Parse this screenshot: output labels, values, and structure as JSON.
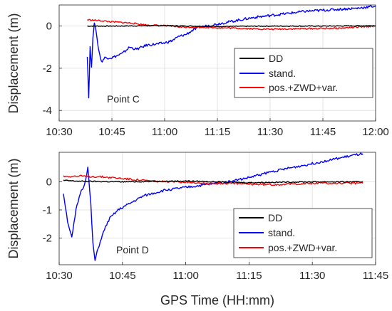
{
  "chart_data": [
    {
      "type": "line",
      "panel": "Point C",
      "annotation": "Point C",
      "ylabel": "Displacement (m)",
      "xlabel": "",
      "x_unit": "HH:mm",
      "xlim": [
        "10:30",
        "12:00"
      ],
      "ylim": [
        -4.5,
        1.0
      ],
      "x_ticks": [
        "10:30",
        "10:45",
        "11:00",
        "11:15",
        "11:30",
        "11:45",
        "12:00"
      ],
      "y_ticks": [
        -4,
        -2,
        0
      ],
      "grid": true,
      "legend": {
        "placement": "bottom-right",
        "entries": [
          "DD",
          "stand.",
          "pos.+ZWD+var."
        ]
      },
      "series": [
        {
          "name": "DD",
          "color": "#000000",
          "x": [
            "10:38",
            "10:45",
            "11:00",
            "11:15",
            "11:30",
            "11:45",
            "12:00"
          ],
          "y": [
            0.0,
            0.0,
            0.02,
            -0.02,
            0.0,
            0.0,
            0.02
          ]
        },
        {
          "name": "stand.",
          "color": "#0000ff",
          "x": [
            "10:38",
            "10:38.4",
            "10:38.8",
            "10:39.2",
            "10:39.6",
            "10:40",
            "10:40.5",
            "10:41",
            "10:42",
            "10:43",
            "10:45",
            "10:48",
            "10:50",
            "10:52",
            "10:55",
            "10:58",
            "11:00",
            "11:02",
            "11:04",
            "11:06",
            "11:08",
            "11:10",
            "11:15",
            "11:20",
            "11:25",
            "11:30",
            "11:35",
            "11:40",
            "11:45",
            "11:50",
            "11:55",
            "12:00"
          ],
          "y": [
            -1.4,
            -3.4,
            -1.0,
            -2.0,
            -0.5,
            0.1,
            -0.2,
            -0.9,
            -1.7,
            -1.5,
            -1.5,
            -1.3,
            -1.0,
            -1.1,
            -0.9,
            -0.85,
            -0.8,
            -0.7,
            -0.5,
            -0.4,
            -0.2,
            -0.05,
            0.1,
            0.25,
            0.4,
            0.5,
            0.6,
            0.7,
            0.75,
            0.8,
            0.85,
            0.95
          ]
        },
        {
          "name": "pos.+ZWD+var.",
          "color": "#ff0000",
          "x": [
            "10:38",
            "10:42",
            "10:45",
            "10:50",
            "10:55",
            "11:00",
            "11:05",
            "11:10",
            "11:15",
            "11:20",
            "11:30",
            "11:40",
            "11:50",
            "12:00"
          ],
          "y": [
            0.3,
            0.25,
            0.2,
            0.15,
            0.05,
            0.02,
            -0.05,
            -0.05,
            -0.08,
            -0.1,
            -0.15,
            -0.12,
            -0.1,
            0.0
          ]
        }
      ]
    },
    {
      "type": "line",
      "panel": "Point D",
      "annotation": "Point D",
      "ylabel": "Displacement (m)",
      "xlabel": "GPS Time (HH:mm)",
      "x_unit": "HH:mm",
      "xlim": [
        "10:30",
        "11:45"
      ],
      "ylim": [
        -2.95,
        1.05
      ],
      "x_ticks": [
        "10:30",
        "10:45",
        "11:00",
        "11:15",
        "11:30",
        "11:45"
      ],
      "y_ticks": [
        -2,
        -1,
        0
      ],
      "grid": true,
      "legend": {
        "placement": "bottom-right",
        "entries": [
          "DD",
          "stand.",
          "pos.+ZWD+var."
        ]
      },
      "series": [
        {
          "name": "DD",
          "color": "#000000",
          "x": [
            "10:31",
            "10:35",
            "10:45",
            "11:00",
            "11:15",
            "11:30",
            "11:42"
          ],
          "y": [
            0.05,
            0.02,
            0.0,
            0.03,
            -0.03,
            0.0,
            0.0
          ]
        },
        {
          "name": "stand.",
          "color": "#0000ff",
          "x": [
            "10:31",
            "10:32",
            "10:33",
            "10:34",
            "10:35",
            "10:36",
            "10:36.8",
            "10:37.5",
            "10:38",
            "10:38.5",
            "10:39",
            "10:40",
            "10:41",
            "10:42",
            "10:44",
            "10:47",
            "10:50",
            "10:55",
            "11:00",
            "11:05",
            "11:10",
            "11:15",
            "11:20",
            "11:25",
            "11:30",
            "11:35",
            "11:40",
            "11:42"
          ],
          "y": [
            -0.4,
            -1.4,
            -2.0,
            -1.0,
            -0.4,
            -0.1,
            0.5,
            -0.8,
            -2.2,
            -2.8,
            -2.5,
            -2.0,
            -1.6,
            -1.3,
            -1.0,
            -0.75,
            -0.5,
            -0.3,
            -0.2,
            -0.1,
            0.0,
            0.15,
            0.35,
            0.5,
            0.65,
            0.8,
            0.95,
            1.0
          ]
        },
        {
          "name": "pos.+ZWD+var.",
          "color": "#ff0000",
          "x": [
            "10:31",
            "10:35",
            "10:40",
            "10:45",
            "10:50",
            "10:55",
            "11:00",
            "11:05",
            "11:10",
            "11:15",
            "11:20",
            "11:30",
            "11:35",
            "11:42"
          ],
          "y": [
            0.2,
            0.2,
            0.18,
            0.12,
            0.05,
            0.0,
            0.0,
            -0.05,
            -0.05,
            -0.08,
            -0.1,
            -0.05,
            -0.05,
            -0.05
          ]
        }
      ]
    }
  ]
}
